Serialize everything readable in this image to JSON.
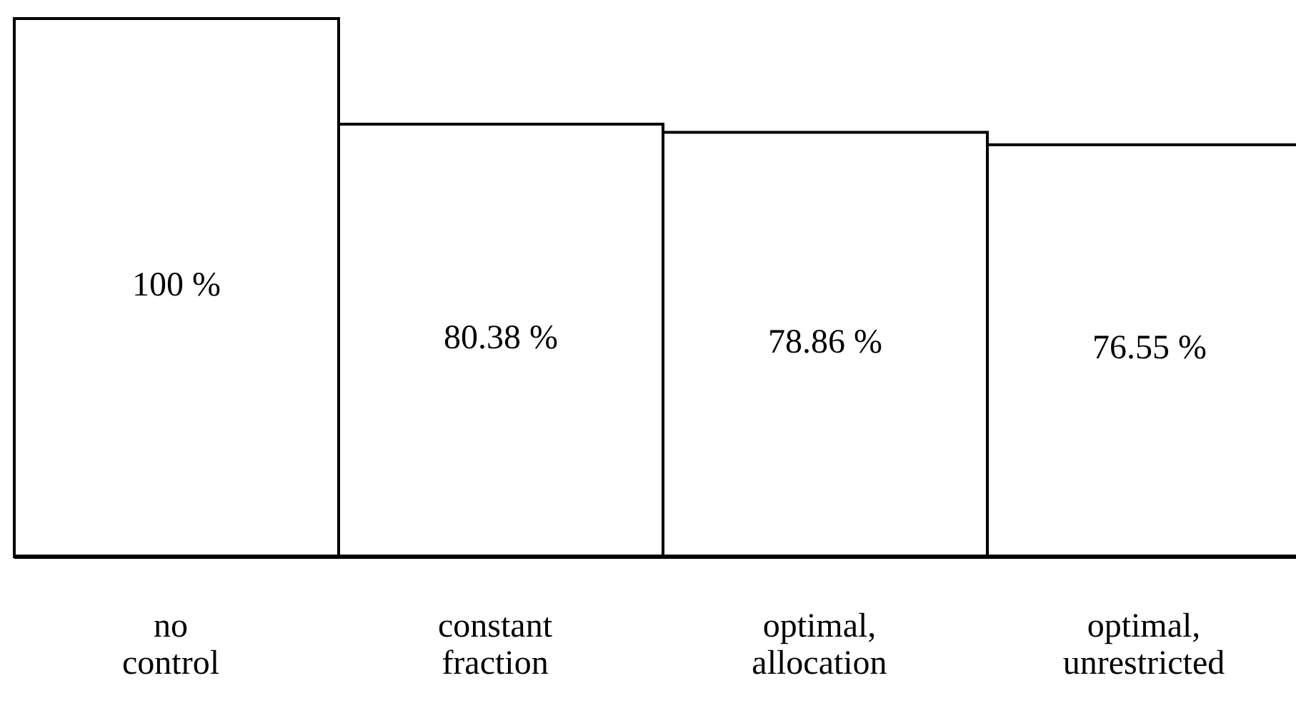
{
  "chart_data": {
    "type": "bar",
    "categories": [
      "no control",
      "constant fraction",
      "optimal, allocation",
      "optimal, unrestricted"
    ],
    "values": [
      100,
      80.38,
      78.86,
      76.55
    ],
    "value_labels": [
      "100 %",
      "80.38 %",
      "78.86 %",
      "76.55 %"
    ],
    "color": "#ffffff",
    "ylim": [
      0,
      100
    ],
    "tick_labels": "x"
  }
}
